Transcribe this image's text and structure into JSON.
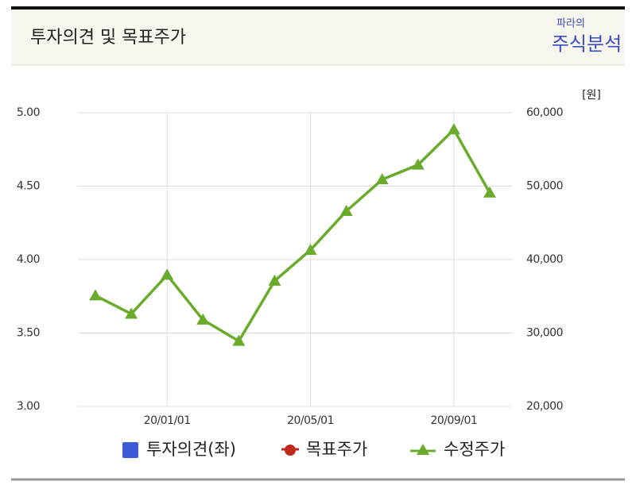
{
  "chart_data": {
    "type": "line",
    "title": "투자의견 및 목표주가",
    "brand_top": "파라의",
    "brand": "주식분석",
    "y2_label": "[원]",
    "categories": [
      null,
      null,
      "20/01/01",
      null,
      null,
      null,
      "20/05/01",
      null,
      null,
      null,
      "20/09/01",
      null
    ],
    "series": [
      {
        "name": "투자의견(좌)",
        "color": "#3b5bd6",
        "marker": "square",
        "axis": "y",
        "values": [
          null,
          null,
          null,
          null,
          null,
          null,
          null,
          null,
          null,
          null,
          null,
          null
        ]
      },
      {
        "name": "목표주가",
        "color": "#c0281c",
        "marker": "circle",
        "axis": "y2",
        "values": [
          null,
          null,
          null,
          null,
          null,
          null,
          null,
          null,
          null,
          null,
          null,
          null
        ]
      },
      {
        "name": "수정주가",
        "color": "#6aab2c",
        "marker": "triangle",
        "axis": "y2",
        "values": [
          35100,
          32600,
          37900,
          31800,
          28900,
          37100,
          41300,
          46600,
          50900,
          52900,
          57700,
          49100
        ]
      }
    ],
    "ylim": [
      3,
      5
    ],
    "yticks": [
      {
        "value": 3,
        "label": "3.00"
      },
      {
        "value": 3.5,
        "label": "3.50"
      },
      {
        "value": 4,
        "label": "4.00"
      },
      {
        "value": 4.5,
        "label": "4.50"
      },
      {
        "value": 5,
        "label": "5.00"
      }
    ],
    "y2lim": [
      20000,
      60000
    ],
    "y2ticks": [
      {
        "value": 20000,
        "label": "20,000"
      },
      {
        "value": 30000,
        "label": "30,000"
      },
      {
        "value": 40000,
        "label": "40,000"
      },
      {
        "value": 50000,
        "label": "50,000"
      },
      {
        "value": 60000,
        "label": "60,000"
      }
    ],
    "grid": true
  }
}
